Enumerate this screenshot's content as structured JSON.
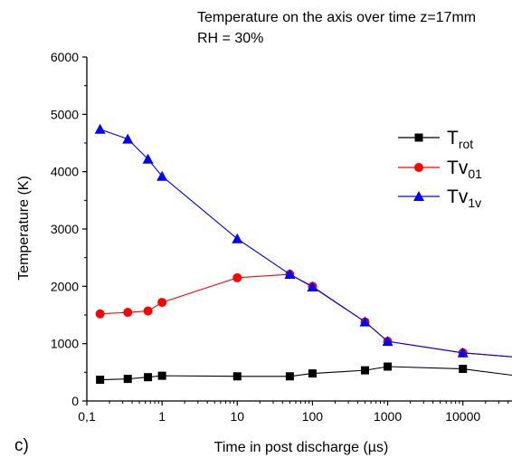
{
  "chart_data": {
    "type": "line",
    "title_lines": [
      "Temperature on the axis over time z=17mm",
      "RH = 30%"
    ],
    "xlabel": "Time in post discharge (µs)",
    "ylabel": "Temperature (K)",
    "panel_label": "c)",
    "x_scale": "log",
    "xlim": [
      0.1,
      45000
    ],
    "ylim": [
      0,
      6000
    ],
    "x_ticks": [
      0.1,
      1,
      10,
      100,
      1000,
      10000
    ],
    "x_tick_labels": [
      "0,1",
      "1",
      "10",
      "100",
      "1000",
      "10000"
    ],
    "y_ticks": [
      0,
      1000,
      2000,
      3000,
      4000,
      5000,
      6000
    ],
    "y_tick_labels": [
      "0",
      "1000",
      "2000",
      "3000",
      "4000",
      "5000",
      "6000"
    ],
    "grid": false,
    "legend_position": "top-right",
    "series": [
      {
        "legend_main": "T",
        "legend_sub": "rot",
        "color": "#000000",
        "marker": "square",
        "x": [
          0.15,
          0.35,
          0.65,
          1,
          10,
          50,
          100,
          500,
          1000,
          10000
        ],
        "y": [
          370,
          385,
          415,
          440,
          430,
          430,
          480,
          535,
          600,
          560
        ],
        "tail": [
          45000,
          450
        ]
      },
      {
        "legend_main": "Tv",
        "legend_sub": "01",
        "color": "#ff0000",
        "marker": "circle",
        "x": [
          0.15,
          0.35,
          0.65,
          1,
          10,
          50,
          100,
          500,
          1000,
          10000
        ],
        "y": [
          1520,
          1545,
          1570,
          1720,
          2150,
          2210,
          2000,
          1380,
          1040,
          840
        ],
        "tail": [
          45000,
          770
        ]
      },
      {
        "legend_main": "Tv",
        "legend_sub": "1v",
        "color": "#0000ff",
        "marker": "triangle",
        "x": [
          0.15,
          0.35,
          0.65,
          1,
          10,
          50,
          100,
          500,
          1000,
          10000
        ],
        "y": [
          4740,
          4570,
          4220,
          3920,
          2830,
          2210,
          1990,
          1380,
          1040,
          840
        ],
        "tail": [
          45000,
          770
        ]
      }
    ]
  }
}
